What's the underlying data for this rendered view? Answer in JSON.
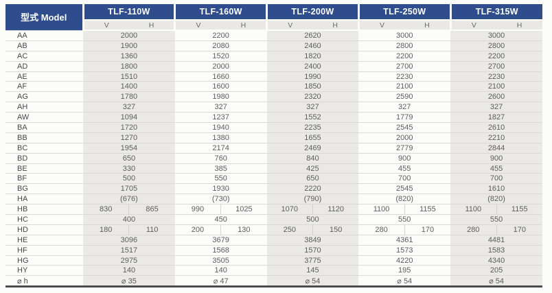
{
  "table": {
    "corner_label": "型式 Model",
    "models": [
      "TLF-110W",
      "TLF-160W",
      "TLF-200W",
      "TLF-250W",
      "TLF-315W"
    ],
    "sub_columns": [
      "V",
      "H"
    ],
    "colors": {
      "header_blue": "#2f4d8c",
      "header_text": "#ffffff",
      "subheader_bg": "#e9e8e5",
      "column_stripe_bg": "#eae9e6",
      "row_divider": "#dad9d6",
      "table_bottom_border": "#4c4c4c",
      "value_text": "#5c5c5c",
      "label_text": "#474747"
    },
    "rows": [
      {
        "label": "AA",
        "cells": [
          "2000",
          "2200",
          "2620",
          "3000",
          "3000"
        ]
      },
      {
        "label": "AB",
        "cells": [
          "1900",
          "2080",
          "2460",
          "2800",
          "2800"
        ]
      },
      {
        "label": "AC",
        "cells": [
          "1360",
          "1520",
          "1820",
          "2200",
          "2200"
        ]
      },
      {
        "label": "AD",
        "cells": [
          "1800",
          "2000",
          "2400",
          "2700",
          "2700"
        ]
      },
      {
        "label": "AE",
        "cells": [
          "1510",
          "1660",
          "1990",
          "2230",
          "2230"
        ]
      },
      {
        "label": "AF",
        "cells": [
          "1400",
          "1600",
          "1850",
          "2100",
          "2100"
        ]
      },
      {
        "label": "AG",
        "cells": [
          "1780",
          "1980",
          "2320",
          "2590",
          "2600"
        ]
      },
      {
        "label": "AH",
        "cells": [
          "327",
          "327",
          "327",
          "327",
          "327"
        ]
      },
      {
        "label": "AW",
        "cells": [
          "1094",
          "1237",
          "1552",
          "1779",
          "1827"
        ]
      },
      {
        "label": "BA",
        "cells": [
          "1720",
          "1940",
          "2235",
          "2545",
          "2610"
        ]
      },
      {
        "label": "BB",
        "cells": [
          "1270",
          "1380",
          "1655",
          "2000",
          "2210"
        ]
      },
      {
        "label": "BC",
        "cells": [
          "1954",
          "2174",
          "2469",
          "2779",
          "2844"
        ]
      },
      {
        "label": "BD",
        "cells": [
          "650",
          "760",
          "840",
          "900",
          "900"
        ]
      },
      {
        "label": "BE",
        "cells": [
          "330",
          "385",
          "425",
          "455",
          "455"
        ]
      },
      {
        "label": "BF",
        "cells": [
          "500",
          "550",
          "650",
          "700",
          "700"
        ]
      },
      {
        "label": "BG",
        "cells": [
          "1705",
          "1930",
          "2220",
          "2545",
          "1610"
        ]
      },
      {
        "label": "HA",
        "cells": [
          "(676)",
          "(730)",
          "(790)",
          "(820)",
          "(820)"
        ]
      },
      {
        "label": "HB",
        "cells": [
          [
            "830",
            "865"
          ],
          [
            "990",
            "1025"
          ],
          [
            "1070",
            "1120"
          ],
          [
            "1100",
            "1155"
          ],
          [
            "1100",
            "1155"
          ]
        ]
      },
      {
        "label": "HC",
        "cells": [
          "400",
          "450",
          "500",
          "550",
          "550"
        ]
      },
      {
        "label": "HD",
        "cells": [
          [
            "180",
            "110"
          ],
          [
            "200",
            "130"
          ],
          [
            "250",
            "150"
          ],
          [
            "280",
            "170"
          ],
          [
            "280",
            "170"
          ]
        ]
      },
      {
        "label": "HE",
        "cells": [
          "3096",
          "3679",
          "3849",
          "4361",
          "4481"
        ]
      },
      {
        "label": "HF",
        "cells": [
          "1517",
          "1568",
          "1570",
          "1573",
          "1583"
        ]
      },
      {
        "label": "HG",
        "cells": [
          "2975",
          "3505",
          "3775",
          "4220",
          "4340"
        ]
      },
      {
        "label": "HY",
        "cells": [
          "140",
          "140",
          "145",
          "195",
          "205"
        ]
      },
      {
        "label": "⌀ h",
        "cells": [
          "⌀ 35",
          "⌀ 47",
          "⌀ 54",
          "⌀ 54",
          "⌀ 54"
        ]
      }
    ]
  }
}
